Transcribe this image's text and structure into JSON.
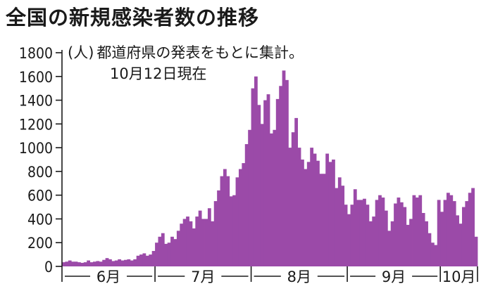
{
  "title": "全国の新規感染者数の推移",
  "note": {
    "unit": "(人)",
    "line1": "都道府県の発表をもとに集計。",
    "line2": "10月12日現在"
  },
  "colors": {
    "bar": "#9b4aa8",
    "axis": "#1a1a1a"
  },
  "chart_data": {
    "type": "bar",
    "title": "全国の新規感染者数の推移",
    "ylabel": "(人)",
    "ylim": [
      0,
      1800
    ],
    "yticks": [
      0,
      200,
      400,
      600,
      800,
      1000,
      1200,
      1400,
      1600,
      1800
    ],
    "grid": false,
    "period": "2020-06-01 to 2020-10-12 (daily)",
    "months": [
      {
        "label": "6月",
        "start_day": 0,
        "days": 30
      },
      {
        "label": "7月",
        "start_day": 30,
        "days": 31
      },
      {
        "label": "8月",
        "start_day": 61,
        "days": 31
      },
      {
        "label": "9月",
        "start_day": 92,
        "days": 30
      },
      {
        "label": "10月",
        "start_day": 122,
        "days": 12
      }
    ],
    "values": [
      35,
      40,
      50,
      40,
      40,
      35,
      30,
      35,
      50,
      35,
      40,
      45,
      40,
      55,
      70,
      60,
      45,
      50,
      60,
      50,
      55,
      60,
      50,
      60,
      90,
      100,
      110,
      90,
      100,
      130,
      200,
      250,
      280,
      190,
      200,
      250,
      230,
      300,
      360,
      400,
      420,
      380,
      320,
      420,
      470,
      400,
      400,
      490,
      380,
      550,
      640,
      760,
      820,
      760,
      590,
      600,
      750,
      820,
      870,
      1030,
      1150,
      1500,
      1600,
      1360,
      1200,
      1400,
      1450,
      1120,
      1150,
      1410,
      1520,
      1650,
      1570,
      1000,
      1130,
      1250,
      1000,
      900,
      820,
      880,
      1000,
      950,
      890,
      780,
      780,
      950,
      880,
      900,
      660,
      750,
      680,
      520,
      440,
      520,
      650,
      560,
      560,
      570,
      520,
      380,
      420,
      560,
      600,
      580,
      470,
      300,
      380,
      530,
      580,
      540,
      500,
      350,
      400,
      600,
      580,
      600,
      450,
      380,
      280,
      200,
      180,
      560,
      460,
      560,
      620,
      600,
      550,
      430,
      360,
      500,
      550,
      620,
      660,
      250
    ]
  }
}
